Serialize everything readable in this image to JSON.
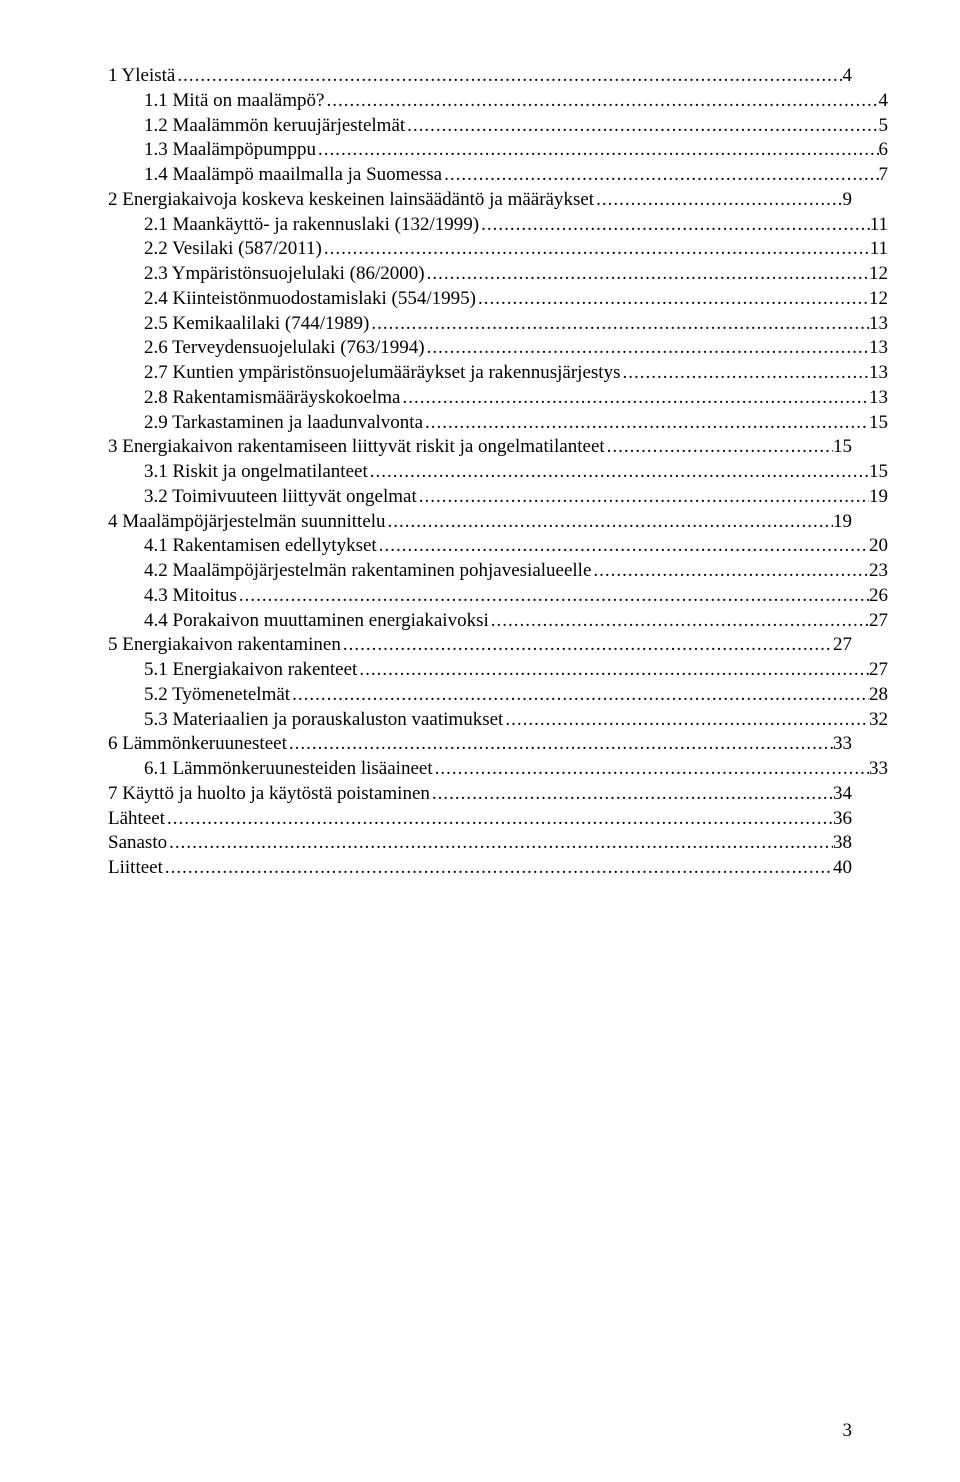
{
  "font_family": "Times New Roman",
  "font_size_pt": 12,
  "text_color": "#000000",
  "background_color": "#ffffff",
  "page_number": "3",
  "toc": [
    {
      "title": "1 Yleistä",
      "page": "4",
      "indent": 0
    },
    {
      "title": "1.1 Mitä on maalämpö?",
      "page": "4",
      "indent": 1
    },
    {
      "title": "1.2 Maalämmön keruujärjestelmät",
      "page": "5",
      "indent": 1
    },
    {
      "title": "1.3 Maalämpöpumppu",
      "page": "6",
      "indent": 1
    },
    {
      "title": "1.4 Maalämpö maailmalla ja Suomessa",
      "page": "7",
      "indent": 1
    },
    {
      "title": "2 Energiakaivoja koskeva keskeinen lainsäädäntö ja määräykset",
      "page": "9",
      "indent": 0
    },
    {
      "title": "2.1 Maankäyttö- ja rakennuslaki (132/1999)",
      "page": "11",
      "indent": 1
    },
    {
      "title": "2.2 Vesilaki (587/2011)",
      "page": "11",
      "indent": 1
    },
    {
      "title": "2.3 Ympäristönsuojelulaki (86/2000)",
      "page": "12",
      "indent": 1
    },
    {
      "title": "2.4 Kiinteistönmuodostamislaki (554/1995)",
      "page": "12",
      "indent": 1
    },
    {
      "title": "2.5 Kemikaalilaki (744/1989)",
      "page": "13",
      "indent": 1
    },
    {
      "title": "2.6 Terveydensuojelulaki (763/1994)",
      "page": "13",
      "indent": 1
    },
    {
      "title": "2.7 Kuntien ympäristönsuojelumääräykset ja rakennusjärjestys",
      "page": "13",
      "indent": 1
    },
    {
      "title": "2.8 Rakentamismääräyskokoelma",
      "page": "13",
      "indent": 1
    },
    {
      "title": "2.9 Tarkastaminen ja laadunvalvonta",
      "page": "15",
      "indent": 1
    },
    {
      "title": "3 Energiakaivon rakentamiseen liittyvät riskit ja ongelmatilanteet",
      "page": "15",
      "indent": 0
    },
    {
      "title": "3.1 Riskit ja ongelmatilanteet",
      "page": "15",
      "indent": 1
    },
    {
      "title": "3.2 Toimivuuteen liittyvät ongelmat",
      "page": "19",
      "indent": 1
    },
    {
      "title": "4 Maalämpöjärjestelmän suunnittelu",
      "page": "19",
      "indent": 0
    },
    {
      "title": "4.1 Rakentamisen edellytykset",
      "page": "20",
      "indent": 1
    },
    {
      "title": "4.2 Maalämpöjärjestelmän rakentaminen pohjavesialueelle",
      "page": "23",
      "indent": 1
    },
    {
      "title": "4.3 Mitoitus",
      "page": "26",
      "indent": 1
    },
    {
      "title": "4.4 Porakaivon muuttaminen energiakaivoksi",
      "page": "27",
      "indent": 1
    },
    {
      "title": "5 Energiakaivon rakentaminen",
      "page": "27",
      "indent": 0
    },
    {
      "title": "5.1 Energiakaivon rakenteet",
      "page": "27",
      "indent": 1
    },
    {
      "title": "5.2 Työmenetelmät",
      "page": "28",
      "indent": 1
    },
    {
      "title": "5.3 Materiaalien ja porauskaluston vaatimukset",
      "page": "32",
      "indent": 1
    },
    {
      "title": "6 Lämmönkeruunesteet",
      "page": "33",
      "indent": 0
    },
    {
      "title": "6.1 Lämmönkeruunesteiden lisäaineet",
      "page": "33",
      "indent": 1
    },
    {
      "title": "7 Käyttö ja huolto ja käytöstä poistaminen",
      "page": "34",
      "indent": 0
    },
    {
      "title": "Lähteet",
      "page": "36",
      "indent": 0
    },
    {
      "title": "Sanasto",
      "page": "38",
      "indent": 0
    },
    {
      "title": "Liitteet",
      "page": "40",
      "indent": 0
    }
  ]
}
